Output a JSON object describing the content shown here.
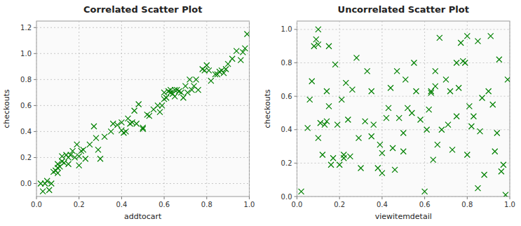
{
  "chart_data": [
    {
      "type": "scatter",
      "title": "Correlated Scatter Plot",
      "x_label": "addtocart",
      "y_label": "checkouts",
      "color": "#008000",
      "marker": "x",
      "grid": true,
      "x": [
        0.02,
        0.03,
        0.04,
        0.05,
        0.06,
        0.07,
        0.08,
        0.09,
        0.1,
        0.1,
        0.1,
        0.11,
        0.12,
        0.12,
        0.13,
        0.14,
        0.15,
        0.15,
        0.16,
        0.17,
        0.18,
        0.19,
        0.2,
        0.2,
        0.21,
        0.22,
        0.23,
        0.25,
        0.27,
        0.28,
        0.29,
        0.3,
        0.32,
        0.35,
        0.36,
        0.38,
        0.4,
        0.4,
        0.41,
        0.42,
        0.43,
        0.44,
        0.45,
        0.46,
        0.47,
        0.48,
        0.5,
        0.5,
        0.52,
        0.53,
        0.55,
        0.57,
        0.58,
        0.59,
        0.6,
        0.6,
        0.61,
        0.62,
        0.63,
        0.63,
        0.64,
        0.65,
        0.65,
        0.66,
        0.67,
        0.68,
        0.69,
        0.7,
        0.71,
        0.72,
        0.73,
        0.74,
        0.75,
        0.76,
        0.78,
        0.79,
        0.8,
        0.81,
        0.82,
        0.84,
        0.85,
        0.86,
        0.87,
        0.88,
        0.89,
        0.9,
        0.92,
        0.94,
        0.96,
        0.97,
        0.98,
        0.99
      ],
      "values": [
        0.0,
        -0.06,
        0.0,
        0.02,
        -0.05,
        0.0,
        0.09,
        0.1,
        0.12,
        0.15,
        0.08,
        0.13,
        0.17,
        0.21,
        0.16,
        0.22,
        0.15,
        0.2,
        0.22,
        0.25,
        0.2,
        0.3,
        0.21,
        0.14,
        0.25,
        0.26,
        0.19,
        0.3,
        0.44,
        0.35,
        0.26,
        0.19,
        0.36,
        0.4,
        0.46,
        0.45,
        0.41,
        0.47,
        0.39,
        0.4,
        0.5,
        0.46,
        0.47,
        0.56,
        0.46,
        0.61,
        0.43,
        0.42,
        0.53,
        0.52,
        0.57,
        0.6,
        0.55,
        0.6,
        0.65,
        0.7,
        0.66,
        0.71,
        0.7,
        0.72,
        0.69,
        0.72,
        0.67,
        0.72,
        0.71,
        0.7,
        0.66,
        0.75,
        0.7,
        0.8,
        0.72,
        0.75,
        0.8,
        0.72,
        0.88,
        0.87,
        0.91,
        0.87,
        0.79,
        0.84,
        0.84,
        0.86,
        0.87,
        0.85,
        0.88,
        0.92,
        0.96,
        1.02,
        0.95,
        1.01,
        1.04,
        1.15
      ],
      "xlim": [
        0.0,
        1.0
      ],
      "xticks": [
        {
          "value": 0.0,
          "label": "0.0"
        },
        0.2,
        0.4,
        0.6,
        0.8,
        {
          "value": 1.0,
          "label": "1.0"
        }
      ],
      "ylim": [
        -0.1,
        1.25
      ],
      "yticks": [
        {
          "value": 0.0,
          "label": "0.0"
        },
        0.2,
        0.4,
        0.6,
        0.8,
        {
          "value": 1.0,
          "label": "1.0"
        },
        1.2
      ]
    },
    {
      "type": "scatter",
      "title": "Uncorrelated Scatter Plot",
      "x_label": "viewitemdetail",
      "y_label": "checkouts",
      "color": "#008000",
      "marker": "x",
      "grid": true,
      "x": [
        0.02,
        0.05,
        0.06,
        0.07,
        0.08,
        0.09,
        0.1,
        0.1,
        0.11,
        0.12,
        0.13,
        0.14,
        0.14,
        0.15,
        0.16,
        0.17,
        0.18,
        0.19,
        0.2,
        0.21,
        0.22,
        0.23,
        0.24,
        0.25,
        0.26,
        0.28,
        0.29,
        0.3,
        0.32,
        0.33,
        0.35,
        0.36,
        0.38,
        0.39,
        0.4,
        0.4,
        0.42,
        0.43,
        0.44,
        0.45,
        0.46,
        0.47,
        0.48,
        0.5,
        0.51,
        0.52,
        0.54,
        0.55,
        0.56,
        0.58,
        0.6,
        0.61,
        0.62,
        0.63,
        0.64,
        0.65,
        0.66,
        0.67,
        0.68,
        0.7,
        0.71,
        0.72,
        0.73,
        0.75,
        0.76,
        0.77,
        0.78,
        0.79,
        0.8,
        0.81,
        0.82,
        0.83,
        0.85,
        0.86,
        0.87,
        0.88,
        0.9,
        0.91,
        0.92,
        0.93,
        0.94,
        0.95,
        0.96,
        0.97,
        0.98,
        0.99,
        0.63,
        0.65,
        0.75,
        0.8,
        0.85,
        0.5,
        0.35,
        0.1,
        0.15,
        0.22
      ],
      "values": [
        0.03,
        0.41,
        0.58,
        0.69,
        0.9,
        0.94,
        0.91,
        1.0,
        0.44,
        0.25,
        0.43,
        0.63,
        0.45,
        0.9,
        0.19,
        0.23,
        0.79,
        0.43,
        0.19,
        0.58,
        0.23,
        0.68,
        0.46,
        0.24,
        0.64,
        0.83,
        0.35,
        0.17,
        0.45,
        0.75,
        0.63,
        0.43,
        0.17,
        0.31,
        0.14,
        0.26,
        0.47,
        0.53,
        0.65,
        0.29,
        0.16,
        0.75,
        0.47,
        0.27,
        0.7,
        0.53,
        0.5,
        0.8,
        0.63,
        0.46,
        0.03,
        0.4,
        0.52,
        0.63,
        0.22,
        0.75,
        0.31,
        0.95,
        0.4,
        0.7,
        0.43,
        0.63,
        0.28,
        0.48,
        0.65,
        0.92,
        0.81,
        0.8,
        0.25,
        0.54,
        0.42,
        0.48,
        0.05,
        0.39,
        0.59,
        0.13,
        0.63,
        0.96,
        0.55,
        0.27,
        0.38,
        0.82,
        0.15,
        0.19,
        0.01,
        0.7,
        0.62,
        0.66,
        0.8,
        0.96,
        0.93,
        0.38,
        0.36,
        0.35,
        0.54,
        0.25
      ],
      "xlim": [
        0.0,
        1.0
      ],
      "xticks": [
        {
          "value": 0.0,
          "label": "0.0"
        },
        0.2,
        0.4,
        0.6,
        0.8,
        {
          "value": 1.0,
          "label": "1.0"
        }
      ],
      "ylim": [
        0.0,
        1.05
      ],
      "yticks": [
        {
          "value": 0.0,
          "label": "0.0"
        },
        0.2,
        0.4,
        0.6,
        0.8,
        {
          "value": 1.0,
          "label": "1.0"
        }
      ]
    }
  ]
}
